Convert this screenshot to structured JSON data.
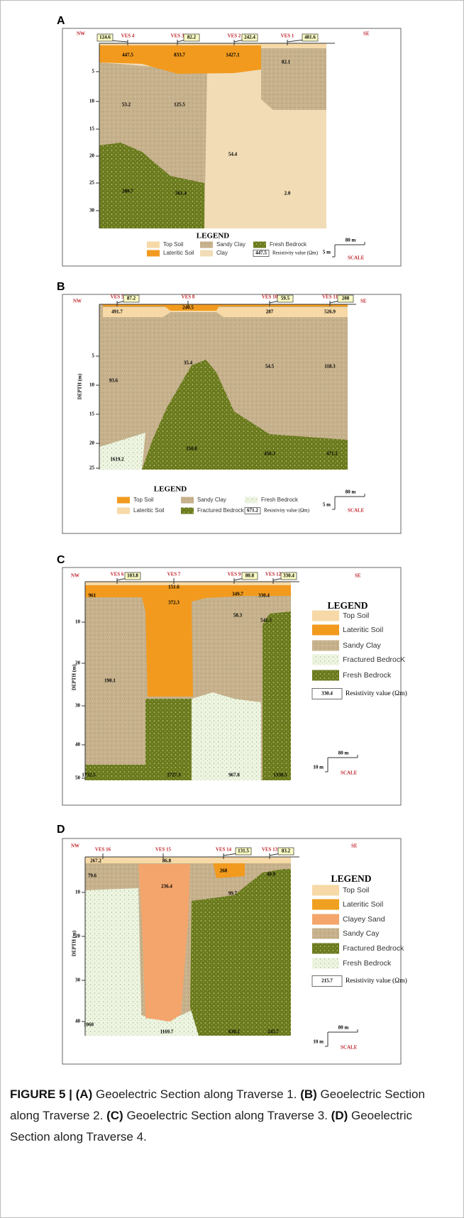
{
  "panels": [
    {
      "label": "A",
      "left": "NW",
      "right": "SE",
      "ves": [
        {
          "name": "VES 4",
          "reading": "124.6"
        },
        {
          "name": "VES 3",
          "reading": "82.2"
        },
        {
          "name": "VES 2",
          "reading": "242.4"
        },
        {
          "name": "VES 1",
          "reading": "481.6"
        }
      ],
      "depth_ticks": [
        5,
        10,
        15,
        20,
        25,
        30
      ],
      "values": [
        "447.5",
        "833.7",
        "1427.1",
        "82.1",
        "53.2",
        "125.5",
        "54.4",
        "280.7",
        "561.4",
        "2.0"
      ],
      "legend": {
        "title": "LEGEND",
        "items": [
          "Top Soil",
          "Lateritic Soil",
          "Sandy Clay",
          "Clay",
          "Fresh Bedrock"
        ],
        "sample": "447.5",
        "sample_text": "Resistivity value (Ωm)"
      },
      "scale": {
        "length": "80 m",
        "depth": "5 m",
        "label": "SCALE"
      }
    },
    {
      "label": "B",
      "left": "NW",
      "right": "SE",
      "ves": [
        {
          "name": "VES 5",
          "reading": "87.2"
        },
        {
          "name": "VES 8"
        },
        {
          "name": "VES 10",
          "reading": "59.5"
        },
        {
          "name": "VES 11",
          "reading": "208"
        }
      ],
      "depth_title": "DEPTH (m)",
      "depth_ticks": [
        5,
        10,
        15,
        20,
        25
      ],
      "values": [
        "491.7",
        "240.5",
        "287",
        "526.9",
        "35.4",
        "54.5",
        "118.3",
        "93.6",
        "1619.2",
        "350.8",
        "456.3",
        "471.2"
      ],
      "legend": {
        "title": "LEGEND",
        "items": [
          "Top Soil",
          "Lateritic Soil",
          "Sandy Clay",
          "Fractured Bedrock",
          "Fresh Bedrock"
        ],
        "sample": "671.2",
        "sample_text": "Resistivity value (Ωm)"
      },
      "scale": {
        "length": "80 m",
        "depth": "5 m",
        "label": "SCALE"
      }
    },
    {
      "label": "C",
      "left": "NW",
      "right": "SE",
      "ves": [
        {
          "name": "VES 6",
          "reading": "103.8"
        },
        {
          "name": "VES 7"
        },
        {
          "name": "VES 9",
          "reading": "80.8"
        },
        {
          "name": "VES 12",
          "reading": "330.4"
        }
      ],
      "depth_title": "DEPTH (m)",
      "depth_ticks": [
        10,
        20,
        30,
        40,
        50
      ],
      "values": [
        "961",
        "151.6",
        "372.3",
        "349.7",
        "330.4",
        "58.3",
        "541.5",
        "190.1",
        "1732.5",
        "2727.3",
        "967.8",
        "1338.5"
      ],
      "legend": {
        "title": "LEGEND",
        "items": [
          "Top Soil",
          "Lateritic Soil",
          "Sandy Clay",
          "Fractured BedrocK",
          "Fresh Bedrock"
        ],
        "sample": "330.4",
        "sample_text": "Resistivity value (Ωm)"
      },
      "scale": {
        "length": "80 m",
        "depth": "10 m",
        "label": "SCALE"
      }
    },
    {
      "label": "D",
      "left": "NW",
      "right": "SE",
      "ves": [
        {
          "name": "VES 16"
        },
        {
          "name": "VES 15"
        },
        {
          "name": "VES 14",
          "reading": "131.5"
        },
        {
          "name": "VES 13",
          "reading": "83.2"
        }
      ],
      "depth_title": "DEPTH (m)",
      "depth_ticks": [
        10,
        20,
        30,
        40
      ],
      "values": [
        "267.2",
        "86.8",
        "268",
        "40.9",
        "79.6",
        "236.4",
        "99.7",
        "1060",
        "1169.7",
        "630.2",
        "245.7"
      ],
      "legend": {
        "title": "LEGEND",
        "items": [
          "Top Soil",
          "Lateritic Soil",
          "Clayey Sand",
          "Sandy Cay",
          "Fractured Bedrock",
          "Fresh Bedrock"
        ],
        "sample": "215.7",
        "sample_text": "Resistivity value (Ωm)"
      },
      "scale": {
        "length": "80 m",
        "depth": "10 m",
        "label": "SCALE"
      }
    }
  ],
  "caption": {
    "label": "FIGURE 5 |",
    "parts": [
      {
        "tag": "(A)",
        "text": "Geoelectric Section along Traverse 1."
      },
      {
        "tag": "(B)",
        "text": "Geoelectric Section along Traverse 2."
      },
      {
        "tag": "(C)",
        "text": "Geoelectric Section along Traverse 3."
      },
      {
        "tag": "(D)",
        "text": "Geoelectric Section along Traverse 4."
      }
    ]
  }
}
